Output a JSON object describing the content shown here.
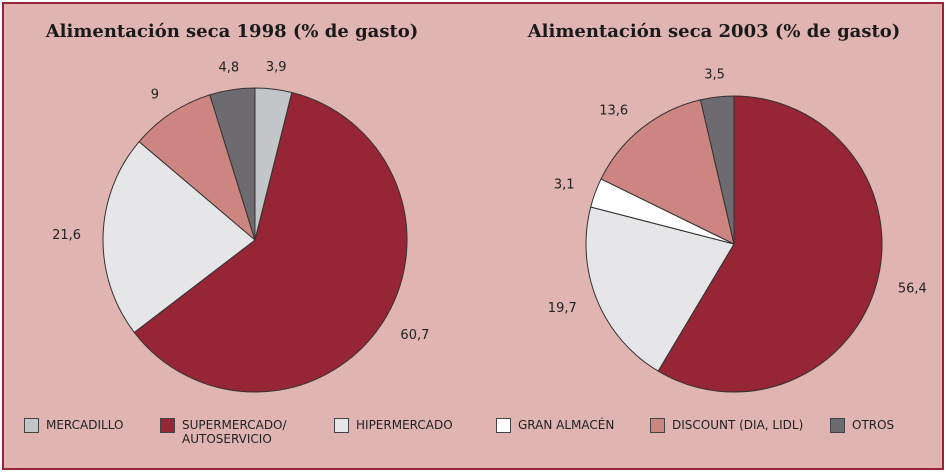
{
  "chart_data": [
    {
      "type": "pie",
      "title": "Alimentación seca 1998 (% de gasto)",
      "values": [
        3.9,
        60.7,
        21.6,
        9,
        4.8
      ],
      "value_labels": [
        "3,9",
        "60,7",
        "21,6",
        "9",
        "4,8"
      ],
      "colors": [
        "#c3c6c9",
        "#962535",
        "#e6e6e8",
        "#cd8582",
        "#6d6a70"
      ]
    },
    {
      "type": "pie",
      "title": "Alimentación seca 2003 (% de gasto)",
      "values": [
        56.4,
        19.7,
        3.1,
        13.6,
        3.5
      ],
      "value_labels": [
        "56,4",
        "19,7",
        "3,1",
        "13,6",
        "3,5"
      ],
      "colors": [
        "#962535",
        "#e6e6e8",
        "#ffffff",
        "#cd8582",
        "#6d6a70"
      ]
    }
  ],
  "legend": [
    {
      "name": "MERCADILLO",
      "color": "#c3c6c9"
    },
    {
      "name": "SUPERMERCADO/ AUTOSERVICIO",
      "color": "#962535"
    },
    {
      "name": "HIPERMERCADO",
      "color": "#e6e6e8"
    },
    {
      "name": "GRAN ALMACÉN",
      "color": "#ffffff"
    },
    {
      "name": "DISCOUNT (DIA, LIDL)",
      "color": "#cd8582"
    },
    {
      "name": "OTROS",
      "color": "#6d6a70"
    }
  ]
}
